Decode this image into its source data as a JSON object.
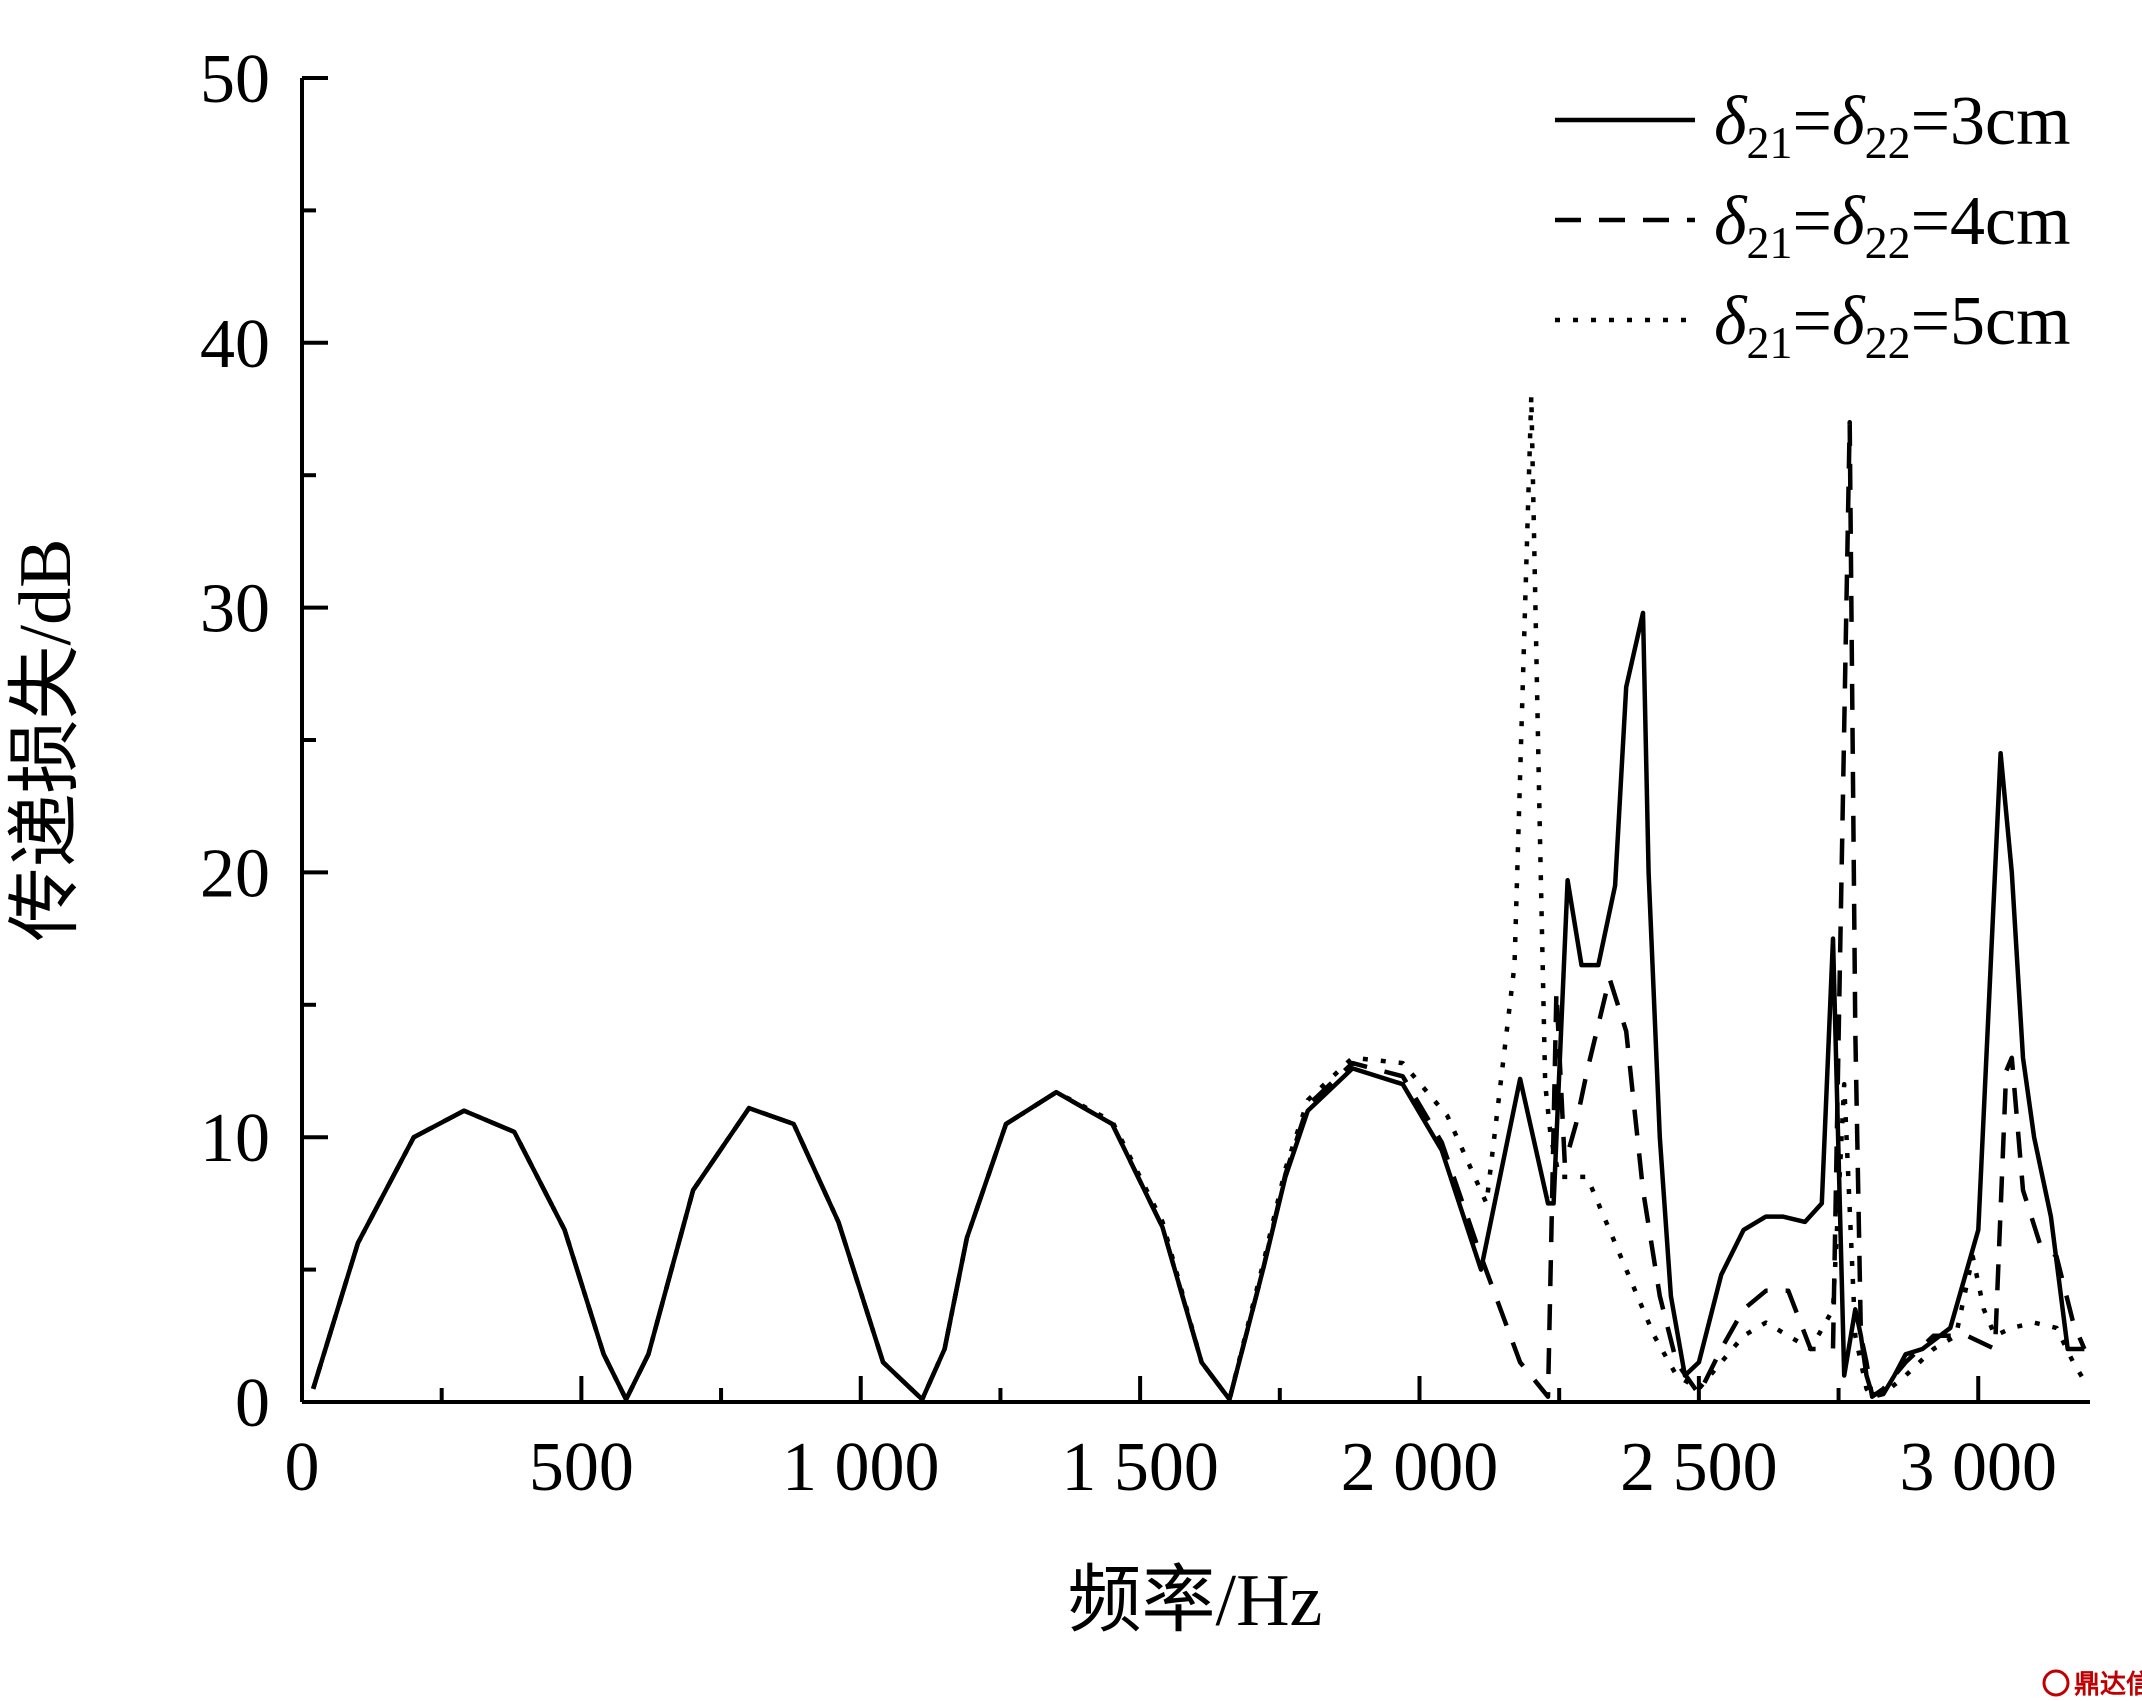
{
  "chart_data": {
    "type": "line",
    "xlabel": "频率/Hz",
    "ylabel": "传递损失/dB",
    "xlim": [
      0,
      3200
    ],
    "ylim": [
      0,
      50
    ],
    "xticks": [
      0,
      500,
      1000,
      1500,
      2000,
      2500,
      3000
    ],
    "xtick_labels": [
      "0",
      "500",
      "1 000",
      "1 500",
      "2 000",
      "2 500",
      "3 000"
    ],
    "yticks": [
      0,
      10,
      20,
      30,
      40,
      50
    ],
    "ytick_labels": [
      "0",
      "10",
      "20",
      "30",
      "40",
      "50"
    ],
    "grid": false,
    "legend_position": "top-right",
    "series": [
      {
        "name": "δ21=δ22=3cm",
        "legend_symbol": "δ",
        "legend_sub1": "21",
        "legend_eq": "=",
        "legend_sub2": "22",
        "legend_value": "=3cm",
        "style": "solid",
        "x": [
          20,
          100,
          200,
          290,
          380,
          470,
          540,
          580,
          620,
          700,
          800,
          880,
          960,
          1040,
          1110,
          1150,
          1190,
          1260,
          1350,
          1450,
          1540,
          1610,
          1660,
          1720,
          1760,
          1800,
          1880,
          1970,
          2040,
          2110,
          2180,
          2230,
          2240,
          2265,
          2290,
          2320,
          2350,
          2370,
          2400,
          2410,
          2430,
          2450,
          2475,
          2500,
          2540,
          2580,
          2620,
          2650,
          2690,
          2720,
          2740,
          2760,
          2780,
          2790,
          2800,
          2810,
          2830,
          2850,
          2870,
          2900,
          2950,
          3000,
          3040,
          3060,
          3080,
          3100,
          3130,
          3160,
          3190
        ],
        "y": [
          0.5,
          6.0,
          10.0,
          11.0,
          10.2,
          6.5,
          1.8,
          0.1,
          1.8,
          8.0,
          11.1,
          10.5,
          6.8,
          1.5,
          0.1,
          2.0,
          6.2,
          10.5,
          11.7,
          10.5,
          6.6,
          1.5,
          0.1,
          5.0,
          8.5,
          11.0,
          12.6,
          12.0,
          9.5,
          5.0,
          12.2,
          7.5,
          7.5,
          19.7,
          16.5,
          16.5,
          19.5,
          27.0,
          29.8,
          20.0,
          10.0,
          4.0,
          1.0,
          1.5,
          4.8,
          6.5,
          7.0,
          7.0,
          6.8,
          7.5,
          17.5,
          1.0,
          3.5,
          2.5,
          1.0,
          0.3,
          0.3,
          1.0,
          1.8,
          2.0,
          2.8,
          6.5,
          24.5,
          20.0,
          13.0,
          10.0,
          7.0,
          2.0,
          2.0
        ]
      },
      {
        "name": "δ21=δ22=4cm",
        "legend_symbol": "δ",
        "legend_sub1": "21",
        "legend_eq": "=",
        "legend_sub2": "22",
        "legend_value": "=4cm",
        "style": "dashed",
        "x": [
          20,
          100,
          200,
          290,
          380,
          470,
          540,
          580,
          620,
          700,
          800,
          880,
          960,
          1040,
          1110,
          1150,
          1190,
          1260,
          1350,
          1450,
          1540,
          1610,
          1660,
          1720,
          1760,
          1800,
          1880,
          1970,
          2040,
          2110,
          2180,
          2230,
          2245,
          2260,
          2280,
          2300,
          2340,
          2370,
          2400,
          2430,
          2460,
          2500,
          2540,
          2580,
          2620,
          2660,
          2700,
          2740,
          2770,
          2780,
          2790,
          2800,
          2810,
          2830,
          2870,
          2920,
          2980,
          3030,
          3050,
          3060,
          3080,
          3110,
          3140,
          3170,
          3190
        ],
        "y": [
          0.5,
          6.0,
          10.0,
          11.0,
          10.2,
          6.5,
          1.8,
          0.1,
          1.8,
          8.0,
          11.1,
          10.5,
          6.8,
          1.5,
          0.1,
          2.0,
          6.2,
          10.5,
          11.7,
          10.5,
          6.6,
          1.5,
          0.1,
          5.0,
          8.6,
          11.2,
          12.8,
          12.3,
          9.8,
          5.5,
          1.5,
          0.2,
          15.5,
          9.0,
          10.5,
          12.5,
          16.0,
          14.0,
          8.0,
          4.0,
          1.5,
          0.3,
          2.0,
          3.5,
          4.2,
          4.2,
          2.0,
          2.0,
          37.0,
          14.0,
          2.5,
          1.5,
          0.2,
          0.5,
          1.5,
          2.5,
          2.5,
          2.0,
          12.5,
          13.0,
          8.0,
          6.0,
          5.5,
          3.0,
          2.0
        ]
      },
      {
        "name": "δ21=δ22=5cm",
        "legend_symbol": "δ",
        "legend_sub1": "21",
        "legend_eq": "=",
        "legend_sub2": "22",
        "legend_value": "=5cm",
        "style": "dotted",
        "x": [
          20,
          100,
          200,
          290,
          380,
          470,
          540,
          580,
          620,
          700,
          800,
          880,
          960,
          1040,
          1110,
          1150,
          1190,
          1260,
          1350,
          1450,
          1540,
          1610,
          1660,
          1720,
          1760,
          1800,
          1880,
          1970,
          2050,
          2120,
          2170,
          2200,
          2215,
          2225,
          2235,
          2250,
          2270,
          2300,
          2340,
          2380,
          2420,
          2460,
          2500,
          2540,
          2580,
          2620,
          2660,
          2700,
          2740,
          2760,
          2780,
          2790,
          2800,
          2810,
          2830,
          2870,
          2920,
          2960,
          2990,
          3010,
          3030,
          3060,
          3100,
          3140,
          3170,
          3190
        ],
        "y": [
          0.5,
          6.0,
          10.0,
          11.0,
          10.2,
          6.5,
          1.8,
          0.1,
          1.8,
          8.0,
          11.1,
          10.5,
          6.8,
          1.5,
          0.1,
          2.0,
          6.2,
          10.5,
          11.7,
          10.6,
          6.8,
          1.5,
          0.1,
          5.2,
          8.8,
          11.4,
          13.0,
          12.8,
          10.8,
          7.5,
          16.5,
          38.0,
          22.0,
          12.0,
          10.0,
          8.5,
          8.5,
          8.5,
          6.5,
          4.5,
          2.5,
          1.0,
          0.5,
          1.5,
          2.5,
          3.0,
          2.5,
          2.0,
          3.5,
          12.0,
          2.5,
          1.5,
          0.5,
          0.2,
          0.3,
          1.0,
          2.0,
          2.5,
          5.5,
          3.5,
          2.5,
          2.8,
          3.0,
          2.8,
          1.5,
          0.8
        ]
      }
    ]
  },
  "watermark": {
    "text": "鼎达信"
  }
}
